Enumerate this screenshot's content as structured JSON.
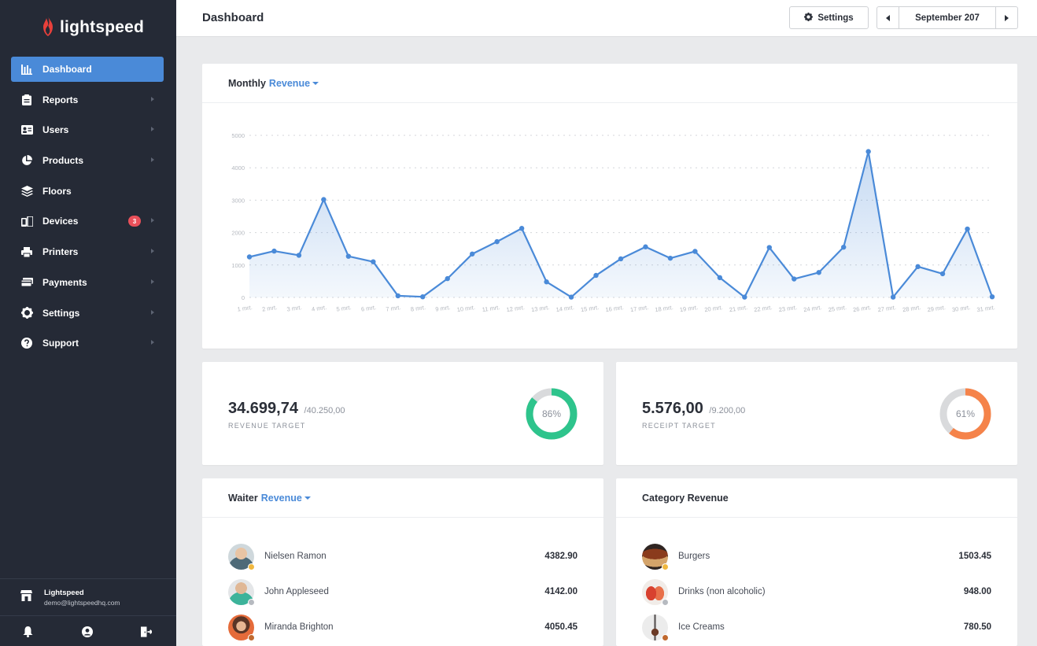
{
  "app": {
    "brand": "lightspeed"
  },
  "sidebar": {
    "items": [
      {
        "label": "Dashboard",
        "icon": "bar-chart-icon",
        "active": true
      },
      {
        "label": "Reports",
        "icon": "clipboard-icon"
      },
      {
        "label": "Users",
        "icon": "id-card-icon"
      },
      {
        "label": "Products",
        "icon": "pie-chart-icon"
      },
      {
        "label": "Floors",
        "icon": "layers-icon"
      },
      {
        "label": "Devices",
        "icon": "devices-icon",
        "badge": "3"
      },
      {
        "label": "Printers",
        "icon": "printer-icon"
      },
      {
        "label": "Payments",
        "icon": "payments-icon"
      },
      {
        "label": "Settings",
        "icon": "gear-icon"
      },
      {
        "label": "Support",
        "icon": "help-icon"
      }
    ],
    "account": {
      "name": "Lightspeed",
      "email": "demo@lightspeedhq.com"
    }
  },
  "header": {
    "title": "Dashboard",
    "settings_label": "Settings",
    "date_label": "September 207"
  },
  "monthly": {
    "title": "Monthly",
    "metric": "Revenue"
  },
  "chart_data": {
    "type": "area",
    "x": [
      "1 mrt.",
      "2 mrt.",
      "3 mrt.",
      "4 mrt.",
      "5 mrt.",
      "6 mrt.",
      "7 mrt.",
      "8 mrt.",
      "9 mrt.",
      "10 mrt.",
      "11 mrt.",
      "12 mrt.",
      "13 mrt.",
      "14 mrt.",
      "15 mrt.",
      "16 mrt.",
      "17 mrt.",
      "18 mrt.",
      "19 mrt.",
      "20 mrt.",
      "21 mrt.",
      "22 mrt.",
      "23 mrt.",
      "24 mrt.",
      "25 mrt.",
      "26 mrt.",
      "27 mrt.",
      "28 mrt.",
      "29 mrt.",
      "30 mrt.",
      "31 mrt."
    ],
    "values": [
      1250,
      1430,
      1300,
      3020,
      1270,
      1100,
      50,
      20,
      580,
      1340,
      1720,
      2130,
      480,
      10,
      680,
      1190,
      1560,
      1210,
      1420,
      610,
      10,
      1540,
      570,
      770,
      1550,
      4500,
      10,
      950,
      730,
      2110,
      20
    ],
    "y_ticks": [
      "0",
      "1000",
      "2000",
      "3000",
      "4000",
      "5000"
    ],
    "ylim": [
      0,
      5000
    ],
    "grid": true,
    "color": "#4a8ad8"
  },
  "kpis": {
    "revenue": {
      "value": "34.699,74",
      "total": "/40.250,00",
      "label": "REVENUE TARGET",
      "percent": 86,
      "percent_label": "86%",
      "color": "#2ec48c"
    },
    "receipt": {
      "value": "5.576,00",
      "total": "/9.200,00",
      "label": "RECEIPT TARGET",
      "percent": 61,
      "percent_label": "61%",
      "color": "#f5834a"
    }
  },
  "waiter": {
    "title": "Waiter",
    "metric": "Revenue",
    "rows": [
      {
        "name": "Nielsen Ramon",
        "value": "4382.90"
      },
      {
        "name": "John Appleseed",
        "value": "4142.00"
      },
      {
        "name": "Miranda Brighton",
        "value": "4050.45"
      }
    ]
  },
  "category": {
    "title": "Category Revenue",
    "rows": [
      {
        "name": "Burgers",
        "value": "1503.45"
      },
      {
        "name": "Drinks (non alcoholic)",
        "value": "948.00"
      },
      {
        "name": "Ice Creams",
        "value": "780.50"
      }
    ]
  }
}
